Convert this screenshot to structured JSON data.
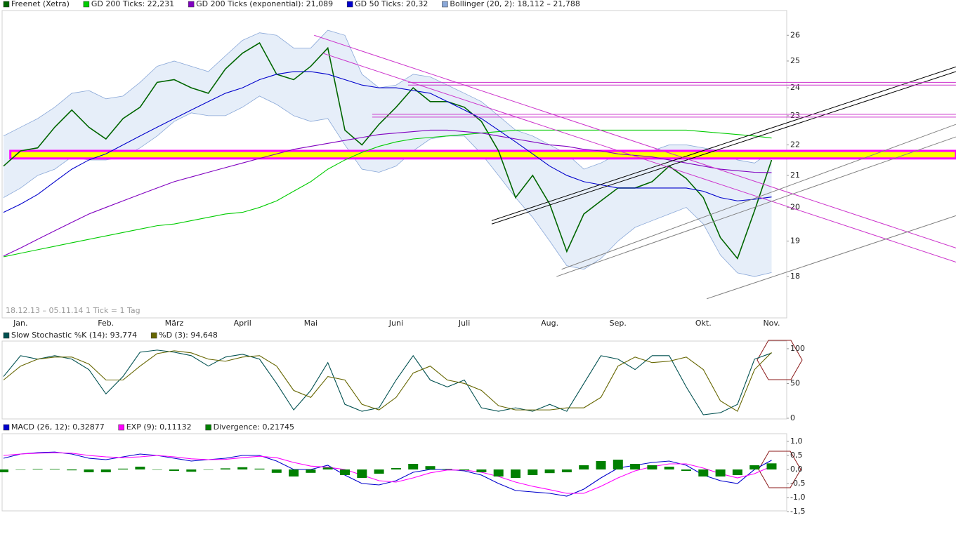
{
  "chart_data": [
    {
      "type": "line",
      "log_scale": true,
      "footnote": "18.12.13 – 05.11.14   1 Tick = 1 Tag",
      "categories": [
        null,
        "Jan.",
        null,
        null,
        null,
        null,
        "Feb.",
        null,
        null,
        null,
        "März",
        null,
        null,
        null,
        "April",
        null,
        null,
        null,
        "Mai",
        null,
        null,
        null,
        null,
        "Juni",
        null,
        null,
        null,
        "Juli",
        null,
        null,
        null,
        null,
        "Aug.",
        null,
        null,
        null,
        "Sep.",
        null,
        null,
        null,
        null,
        "Okt.",
        null,
        null,
        null,
        "Nov."
      ],
      "ylim": [
        16.9,
        27
      ],
      "yticks": [
        18,
        19,
        20,
        21,
        22,
        23,
        24,
        25,
        26
      ],
      "series": [
        {
          "name": "Freenet (Xetra)",
          "color": "#006600",
          "values": [
            21.3,
            21.8,
            21.9,
            22.6,
            23.2,
            22.6,
            22.2,
            22.9,
            23.3,
            24.2,
            24.3,
            24.0,
            23.8,
            24.7,
            25.3,
            25.7,
            24.5,
            24.3,
            24.8,
            25.5,
            22.5,
            22.0,
            22.7,
            23.3,
            24.0,
            23.5,
            23.5,
            23.3,
            22.8,
            21.8,
            20.3,
            21.0,
            20.1,
            18.7,
            19.8,
            20.2,
            20.6,
            20.6,
            20.8,
            21.3,
            20.9,
            20.3,
            19.1,
            18.5,
            19.9,
            21.5
          ]
        },
        {
          "name": "GD 200 Ticks: 22,231",
          "color": "#00cc00",
          "values": [
            18.55,
            18.65,
            18.75,
            18.85,
            18.95,
            19.05,
            19.15,
            19.25,
            19.35,
            19.45,
            19.5,
            19.6,
            19.7,
            19.8,
            19.85,
            20.0,
            20.2,
            20.5,
            20.8,
            21.2,
            21.5,
            21.75,
            21.95,
            22.1,
            22.2,
            22.25,
            22.3,
            22.35,
            22.4,
            22.45,
            22.5,
            22.5,
            22.5,
            22.5,
            22.5,
            22.5,
            22.5,
            22.5,
            22.5,
            22.5,
            22.5,
            22.45,
            22.4,
            22.35,
            22.3,
            22.23
          ]
        },
        {
          "name": "GD 200 Ticks (exponential): 21,089",
          "color": "#8000c0",
          "values": [
            18.57,
            18.8,
            19.05,
            19.3,
            19.55,
            19.8,
            20.0,
            20.2,
            20.4,
            20.6,
            20.8,
            20.95,
            21.1,
            21.25,
            21.4,
            21.55,
            21.7,
            21.85,
            21.95,
            22.05,
            22.15,
            22.25,
            22.35,
            22.4,
            22.45,
            22.5,
            22.5,
            22.45,
            22.4,
            22.3,
            22.2,
            22.1,
            22.0,
            21.95,
            21.85,
            21.8,
            21.7,
            21.65,
            21.6,
            21.5,
            21.4,
            21.3,
            21.2,
            21.15,
            21.1,
            21.09
          ]
        },
        {
          "name": "GD 50 Ticks: 20,32",
          "color": "#0000cc",
          "values": [
            19.85,
            20.1,
            20.4,
            20.8,
            21.2,
            21.5,
            21.7,
            22.0,
            22.3,
            22.6,
            22.9,
            23.2,
            23.5,
            23.8,
            24.0,
            24.3,
            24.5,
            24.6,
            24.6,
            24.5,
            24.3,
            24.1,
            24.0,
            24.0,
            23.9,
            23.8,
            23.5,
            23.2,
            22.9,
            22.5,
            22.1,
            21.7,
            21.3,
            21.0,
            20.8,
            20.7,
            20.6,
            20.6,
            20.6,
            20.6,
            20.6,
            20.5,
            20.3,
            20.2,
            20.25,
            20.32
          ]
        }
      ],
      "band": {
        "name": "Bollinger (20, 2): 18,112 – 21,788",
        "color": "#8aa8d8",
        "fill": "#e6eef9",
        "upper": [
          22.3,
          22.6,
          22.9,
          23.3,
          23.8,
          23.9,
          23.6,
          23.7,
          24.2,
          24.8,
          25.0,
          24.8,
          24.6,
          25.2,
          25.8,
          26.1,
          26.0,
          25.5,
          25.5,
          26.2,
          26.0,
          24.5,
          24.0,
          24.1,
          24.5,
          24.4,
          24.1,
          23.8,
          23.5,
          23.0,
          22.5,
          22.3,
          22.0,
          21.7,
          21.2,
          21.4,
          21.7,
          21.8,
          21.8,
          22.0,
          22.0,
          21.9,
          21.8,
          21.5,
          21.4,
          21.79
        ],
        "lower": [
          20.3,
          20.6,
          21.0,
          21.2,
          21.6,
          21.5,
          21.5,
          21.6,
          21.9,
          22.3,
          22.8,
          23.1,
          23.0,
          23.0,
          23.3,
          23.7,
          23.4,
          23.0,
          22.8,
          22.9,
          22.0,
          21.2,
          21.1,
          21.3,
          21.8,
          22.2,
          22.3,
          22.3,
          21.7,
          21.0,
          20.3,
          19.7,
          19.0,
          18.3,
          18.2,
          18.5,
          19.0,
          19.4,
          19.6,
          19.8,
          20.0,
          19.5,
          18.6,
          18.1,
          18.0,
          18.11
        ]
      },
      "hbands": [
        {
          "x": [
            0.4,
            55.8
          ],
          "low": 21.55,
          "high": 21.8,
          "color": "#ffff00",
          "edge": "#ff00ff"
        }
      ],
      "trendlines": [
        {
          "x": [
            28.6,
            55.8
          ],
          "y": [
            19.6,
            24.78
          ],
          "color": "#000000"
        },
        {
          "x": [
            28.6,
            55.8
          ],
          "y": [
            19.5,
            24.6
          ],
          "color": "#000000"
        },
        {
          "x": [
            18.2,
            55.8
          ],
          "y": [
            26.0,
            18.8
          ],
          "color": "#cc33cc"
        },
        {
          "x": [
            18.7,
            55.8
          ],
          "y": [
            25.3,
            18.4
          ],
          "color": "#cc33cc"
        },
        {
          "x": [
            23.7,
            55.8
          ],
          "y": [
            24.2,
            24.2
          ],
          "color": "#cc33cc"
        },
        {
          "x": [
            23.7,
            55.8
          ],
          "y": [
            24.1,
            24.1
          ],
          "color": "#cc33cc"
        },
        {
          "x": [
            21.6,
            55.8
          ],
          "y": [
            23.05,
            23.05
          ],
          "color": "#cc33cc"
        },
        {
          "x": [
            21.6,
            55.8
          ],
          "y": [
            22.95,
            22.95
          ],
          "color": "#cc33cc"
        },
        {
          "x": [
            32.4,
            55.8
          ],
          "y": [
            18.0,
            22.27
          ],
          "color": "#808080"
        },
        {
          "x": [
            32.7,
            55.8
          ],
          "y": [
            18.2,
            22.7
          ],
          "color": "#808080"
        },
        {
          "x": [
            41.2,
            55.8
          ],
          "y": [
            17.4,
            19.75
          ],
          "color": "#808080"
        }
      ]
    },
    {
      "type": "line",
      "ylim": [
        -1,
        111
      ],
      "yticks": [
        0,
        50,
        100
      ],
      "series": [
        {
          "name": "Slow Stochastic %K (14): 93,774",
          "color": "#005050",
          "values": [
            60,
            90,
            85,
            90,
            85,
            70,
            35,
            60,
            95,
            98,
            95,
            90,
            75,
            88,
            92,
            85,
            50,
            12,
            40,
            80,
            20,
            10,
            15,
            55,
            90,
            55,
            45,
            55,
            15,
            10,
            15,
            10,
            20,
            10,
            50,
            90,
            85,
            70,
            90,
            90,
            45,
            5,
            8,
            20,
            85,
            93.774
          ]
        },
        {
          "name": "%D (3): 94,648",
          "color": "#666600",
          "values": [
            55,
            75,
            85,
            88,
            88,
            78,
            55,
            55,
            75,
            93,
            97,
            94,
            85,
            82,
            88,
            90,
            75,
            40,
            30,
            60,
            55,
            20,
            12,
            30,
            65,
            75,
            55,
            50,
            40,
            18,
            12,
            12,
            12,
            15,
            15,
            30,
            75,
            88,
            80,
            82,
            88,
            70,
            25,
            10,
            70,
            94.648
          ]
        }
      ]
    },
    {
      "type": "line",
      "ylim": [
        -1.475,
        1.275
      ],
      "yticks": [
        {
          "value": 1,
          "label": "1,0"
        },
        {
          "value": 0.5,
          "label": "0,5"
        },
        {
          "value": 0,
          "label": "0,0"
        },
        {
          "value": -0.5,
          "label": "-0,5"
        },
        {
          "value": -1,
          "label": "-1,0"
        },
        {
          "value": -1.5,
          "label": "-1,5"
        }
      ],
      "series": [
        {
          "name": "MACD (26, 12): 0,32877",
          "color": "#0000cc",
          "values": [
            0.4,
            0.55,
            0.6,
            0.62,
            0.55,
            0.4,
            0.35,
            0.45,
            0.55,
            0.5,
            0.4,
            0.3,
            0.35,
            0.4,
            0.5,
            0.5,
            0.3,
            0.0,
            0.0,
            0.15,
            -0.2,
            -0.5,
            -0.55,
            -0.4,
            -0.1,
            0.0,
            0.0,
            -0.05,
            -0.2,
            -0.5,
            -0.75,
            -0.8,
            -0.85,
            -0.95,
            -0.7,
            -0.3,
            0.05,
            0.15,
            0.25,
            0.3,
            0.15,
            -0.2,
            -0.4,
            -0.5,
            0.0,
            0.32877
          ]
        },
        {
          "name": "EXP (9): 0,11132",
          "color": "#ff00ff",
          "values": [
            0.5,
            0.55,
            0.58,
            0.6,
            0.58,
            0.5,
            0.45,
            0.42,
            0.45,
            0.5,
            0.45,
            0.38,
            0.35,
            0.36,
            0.42,
            0.47,
            0.42,
            0.25,
            0.12,
            0.08,
            0.0,
            -0.2,
            -0.4,
            -0.45,
            -0.3,
            -0.12,
            -0.02,
            -0.02,
            -0.1,
            -0.25,
            -0.45,
            -0.6,
            -0.72,
            -0.85,
            -0.85,
            -0.6,
            -0.3,
            -0.05,
            0.1,
            0.2,
            0.2,
            0.05,
            -0.15,
            -0.3,
            -0.15,
            0.11132
          ]
        },
        {
          "name": "Divergence: 0,21745",
          "color": "#008000",
          "type": "bar",
          "values": [
            -0.1,
            0,
            0.02,
            0.02,
            -0.03,
            -0.1,
            -0.1,
            0.03,
            0.1,
            0,
            -0.05,
            -0.08,
            0,
            0.04,
            0.08,
            0.03,
            -0.12,
            -0.25,
            -0.12,
            0.07,
            -0.2,
            -0.3,
            -0.15,
            0.05,
            0.2,
            0.12,
            0.02,
            -0.03,
            -0.1,
            -0.25,
            -0.3,
            -0.2,
            -0.13,
            -0.1,
            0.15,
            0.3,
            0.35,
            0.2,
            0.15,
            0.1,
            -0.05,
            -0.25,
            -0.25,
            -0.2,
            0.15,
            0.21745
          ]
        }
      ]
    }
  ]
}
